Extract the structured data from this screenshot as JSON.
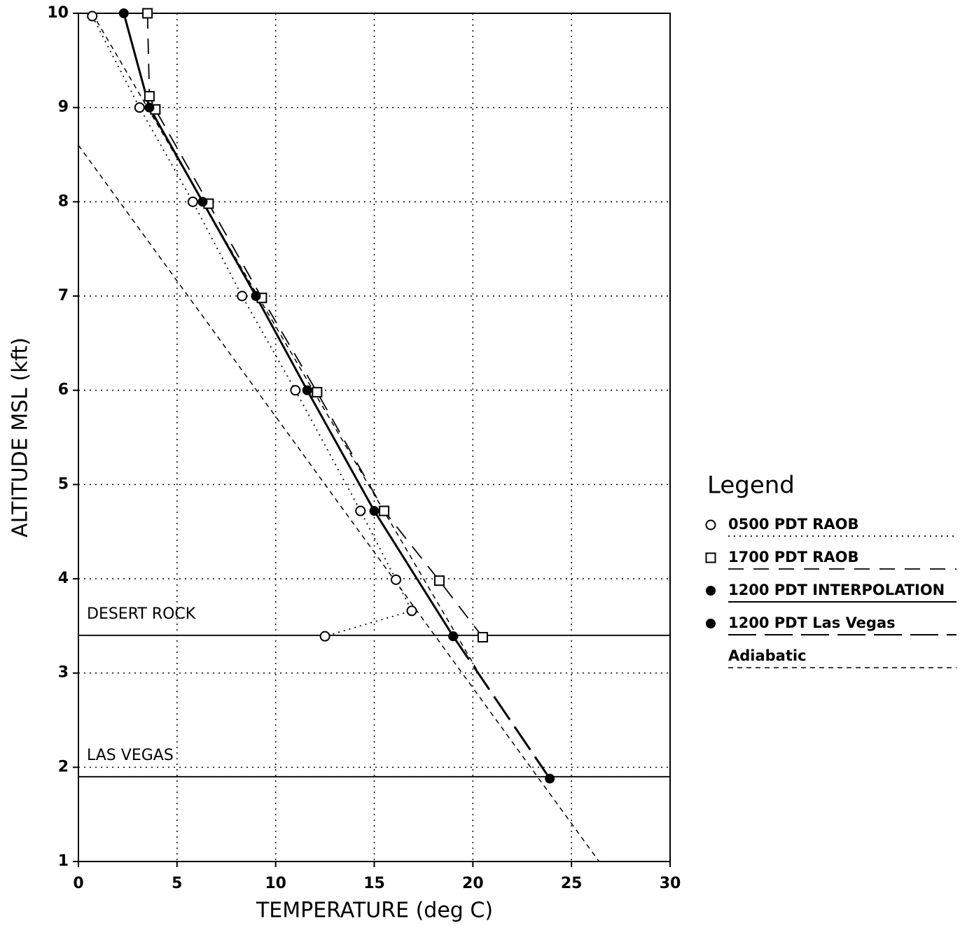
{
  "chart_data": {
    "type": "line",
    "xlabel": "TEMPERATURE (deg C)",
    "ylabel": "ALTITUDE MSL (kft)",
    "xlim": [
      0,
      30
    ],
    "ylim": [
      1,
      10
    ],
    "xticks": [
      0,
      5,
      10,
      15,
      20,
      25,
      30
    ],
    "yticks": [
      1,
      2,
      3,
      4,
      5,
      6,
      7,
      8,
      9,
      10
    ],
    "grid": true,
    "legend_title": "Legend",
    "legend_position": "right",
    "reference_lines": [
      {
        "label": "DESERT ROCK",
        "value": 3.4
      },
      {
        "label": "LAS VEGAS",
        "value": 1.9
      }
    ],
    "series": [
      {
        "name": "0500 PDT RAOB",
        "color": "#000000",
        "marker": "open-circle",
        "dash": "dotted",
        "x": [
          0.7,
          3.1,
          5.8,
          8.3,
          11.0,
          14.3,
          16.1,
          16.9,
          12.5
        ],
        "values": [
          9.97,
          9.0,
          8.0,
          7.0,
          6.0,
          4.72,
          3.99,
          3.66,
          3.39
        ]
      },
      {
        "name": "1700 PDT RAOB",
        "color": "#000000",
        "marker": "open-square",
        "dash": "dashed",
        "x": [
          3.5,
          3.6,
          3.9,
          6.6,
          9.3,
          12.1,
          15.5,
          18.3,
          20.5
        ],
        "values": [
          10.0,
          9.12,
          8.98,
          7.98,
          6.98,
          5.98,
          4.72,
          3.98,
          3.38
        ]
      },
      {
        "name": "1200 PDT INTERPOLATION",
        "color": "#000000",
        "marker": "filled-circle",
        "dash": "solid",
        "x": [
          2.3,
          3.6,
          6.3,
          9.0,
          11.6,
          15.0,
          19.0
        ],
        "values": [
          10.0,
          9.0,
          8.0,
          7.0,
          6.0,
          4.72,
          3.39
        ]
      },
      {
        "name": "1200 PDT Las Vegas",
        "color": "#000000",
        "marker": "filled-circle",
        "dash": "longdash",
        "x": [
          19.0,
          23.9
        ],
        "values": [
          3.39,
          1.88
        ]
      },
      {
        "name": "Adiabatic",
        "color": "#000000",
        "marker": "none",
        "dash": "shortdash",
        "x": [
          0.7,
          20.3,
          null,
          0.0,
          26.4
        ],
        "values": [
          10.0,
          3.0,
          null,
          8.6,
          1.0
        ]
      }
    ]
  }
}
